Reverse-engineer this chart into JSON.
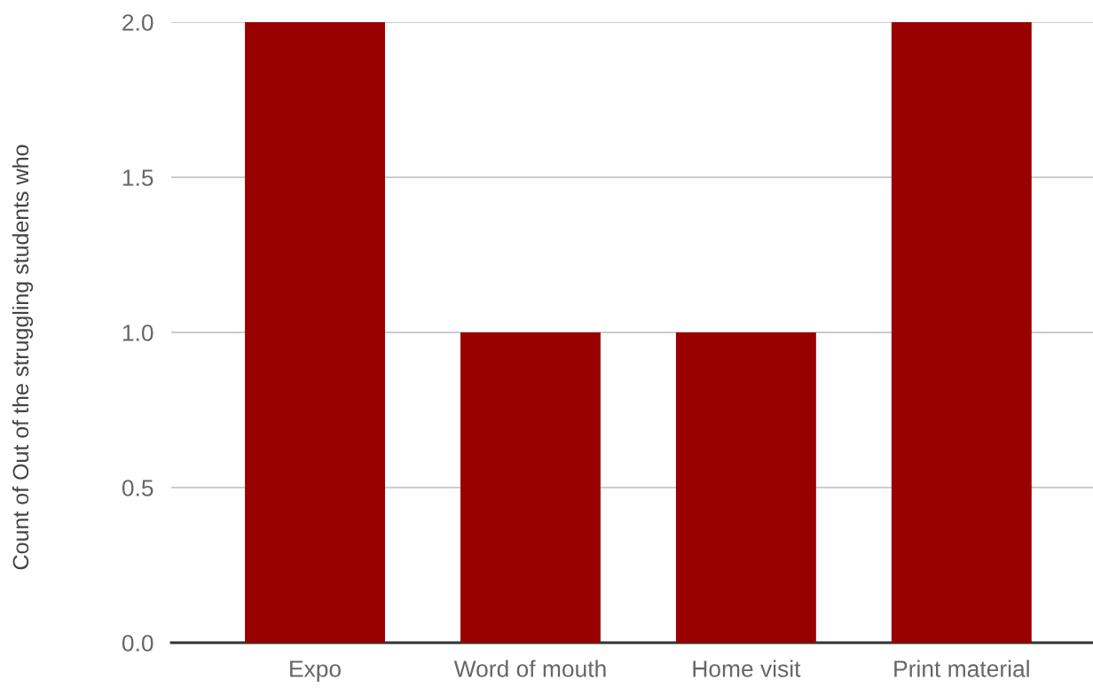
{
  "chart_data": {
    "type": "bar",
    "ylabel": "Count of Out of the struggling students who",
    "categories": [
      "Expo",
      "Word of mouth",
      "Home visit",
      "Print material"
    ],
    "values": [
      2,
      1,
      1,
      2
    ],
    "color": "#990000",
    "ylim": [
      0,
      2
    ],
    "yticks": [
      {
        "value": 0,
        "label": "0.0"
      },
      {
        "value": 0.5,
        "label": "0.5"
      },
      {
        "value": 1,
        "label": "1.0"
      },
      {
        "value": 1.5,
        "label": "1.5"
      },
      {
        "value": 2,
        "label": "2.0"
      }
    ],
    "grid": "y"
  }
}
